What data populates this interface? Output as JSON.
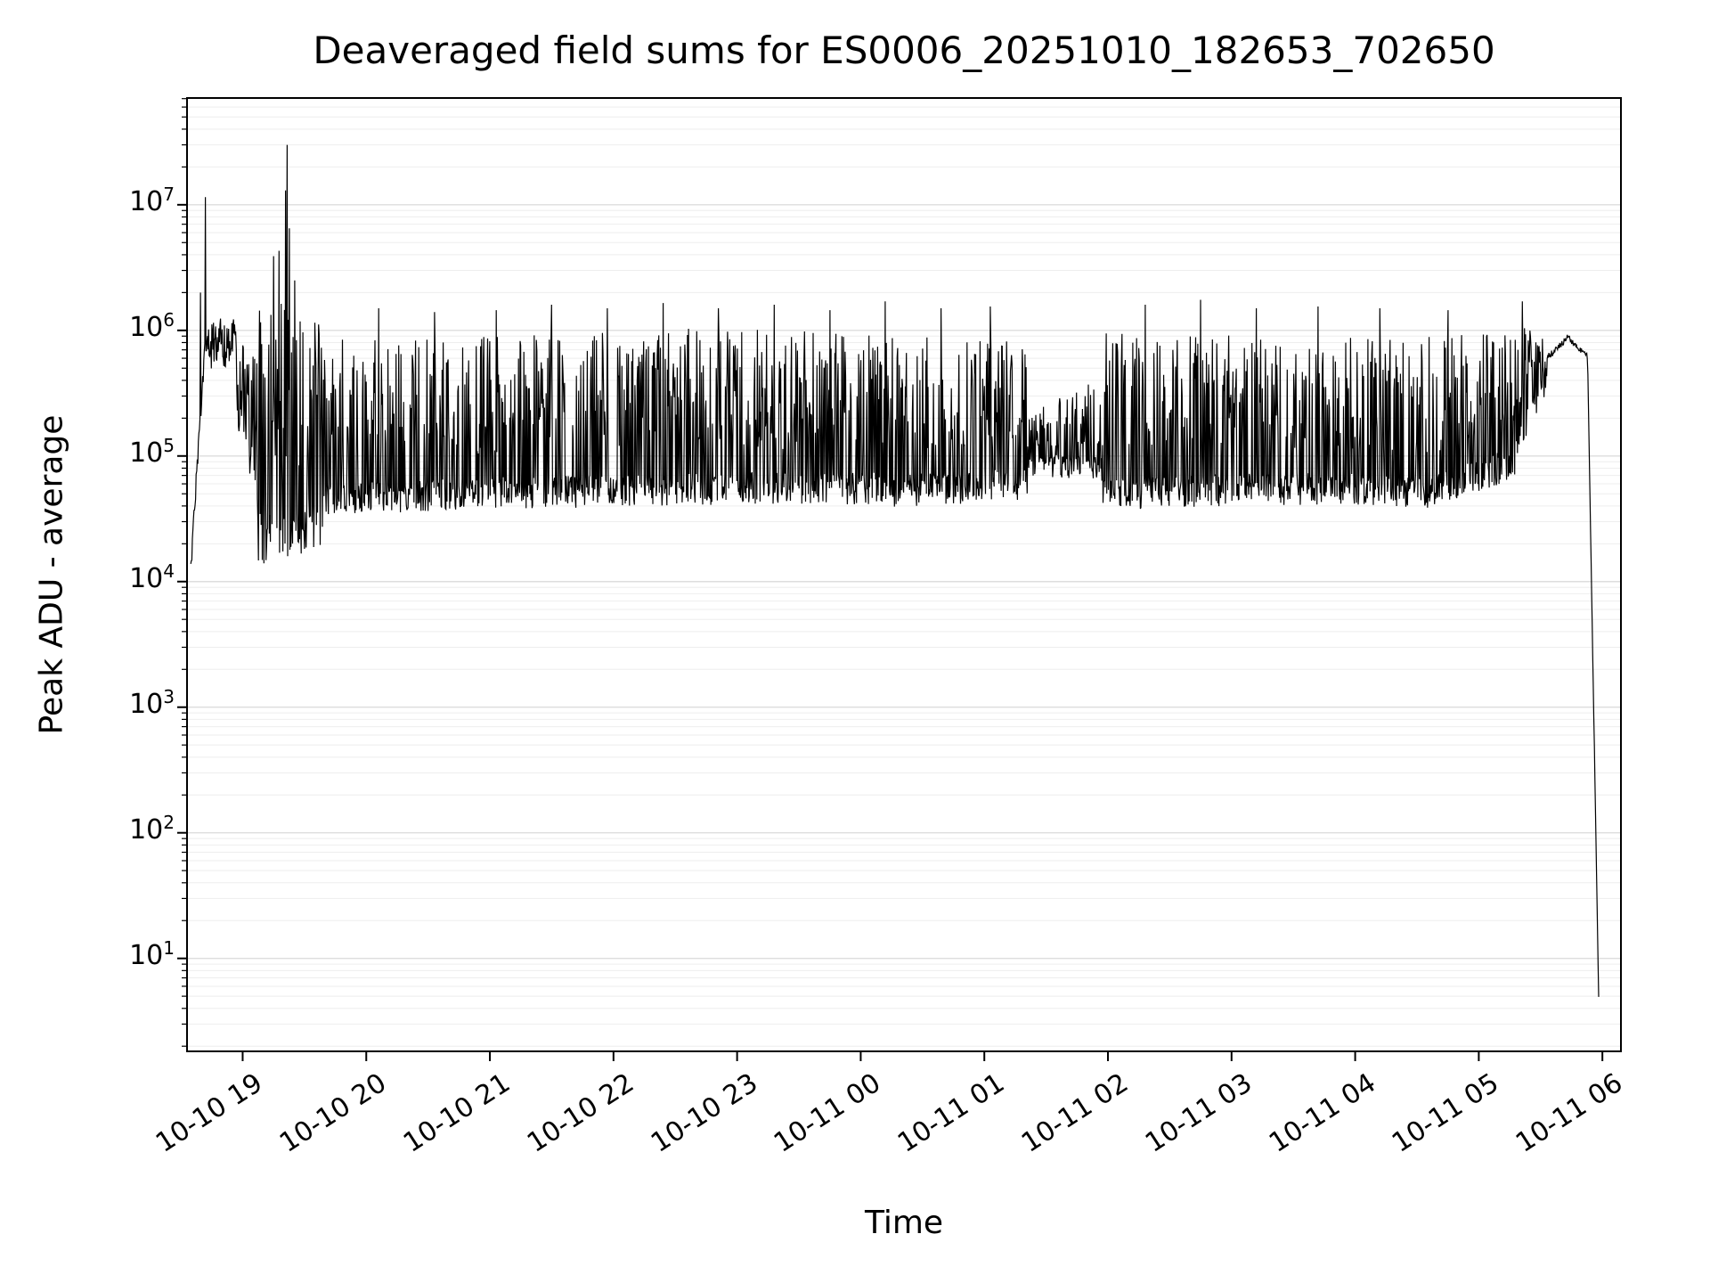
{
  "chart_data": {
    "type": "line",
    "title": "Deaveraged field sums for ES0006_20251010_182653_702650",
    "xlabel": "Time",
    "ylabel": "Peak ADU - average",
    "y_scale": "log",
    "grid": "both",
    "legend": "none",
    "line_color": "#000000",
    "grid_major_color": "#dddddd",
    "grid_minor_color": "#eeeeee",
    "xlim_hours": [
      0.55,
      12.15
    ],
    "ylog_range": [
      0.26,
      7.85
    ],
    "y_tick_base": "10",
    "y_tick_exponents": [
      1,
      2,
      3,
      4,
      5,
      6,
      7
    ],
    "x_ticks": [
      {
        "hour": 1,
        "label": "10-10 19"
      },
      {
        "hour": 2,
        "label": "10-10 20"
      },
      {
        "hour": 3,
        "label": "10-10 21"
      },
      {
        "hour": 4,
        "label": "10-10 22"
      },
      {
        "hour": 5,
        "label": "10-10 23"
      },
      {
        "hour": 6,
        "label": "10-11 00"
      },
      {
        "hour": 7,
        "label": "10-11 01"
      },
      {
        "hour": 8,
        "label": "10-11 02"
      },
      {
        "hour": 9,
        "label": "10-11 03"
      },
      {
        "hour": 10,
        "label": "10-11 04"
      },
      {
        "hour": 11,
        "label": "10-11 05"
      },
      {
        "hour": 12,
        "label": "10-11 06"
      }
    ],
    "series": {
      "name": "Peak ADU - average",
      "t_start_hours": 0.58,
      "t_end_hours": 11.97,
      "samples": 2600,
      "envelope_segments": [
        {
          "t0": 0.58,
          "t1": 0.7,
          "style": "smooth",
          "v0": 13000,
          "v1": 900000,
          "jitter": 0.2
        },
        {
          "t0": 0.7,
          "t1": 0.95,
          "style": "noisy",
          "low0": 600000,
          "low1": 580000,
          "high0": 1300000,
          "high1": 1250000,
          "spike_p": 0.6,
          "jitter": 0.2
        },
        {
          "t0": 0.95,
          "t1": 1.12,
          "style": "noisy",
          "low0": 250000,
          "low1": 60000,
          "high0": 1050000,
          "high1": 800000,
          "spike_p": 0.45,
          "jitter": 0.35
        },
        {
          "t0": 1.12,
          "t1": 1.65,
          "style": "noisy",
          "low0": 22000,
          "low1": 30000,
          "high0": 2400000,
          "high1": 1100000,
          "spike_p": 0.45,
          "jitter": 0.5
        },
        {
          "t0": 1.65,
          "t1": 3.2,
          "style": "noisy",
          "low0": 45000,
          "low1": 52000,
          "high0": 850000,
          "high1": 900000,
          "spike_p": 0.42,
          "jitter": 0.3
        },
        {
          "t0": 3.2,
          "t1": 4.6,
          "style": "noisy",
          "low0": 50000,
          "low1": 55000,
          "high0": 950000,
          "high1": 1000000,
          "spike_p": 0.43,
          "jitter": 0.3
        },
        {
          "t0": 4.6,
          "t1": 6.2,
          "style": "noisy",
          "low0": 55000,
          "low1": 55000,
          "high0": 1050000,
          "high1": 950000,
          "spike_p": 0.43,
          "jitter": 0.3
        },
        {
          "t0": 6.2,
          "t1": 7.35,
          "style": "noisy",
          "low0": 52000,
          "low1": 60000,
          "high0": 900000,
          "high1": 850000,
          "spike_p": 0.41,
          "jitter": 0.3
        },
        {
          "t0": 7.35,
          "t1": 7.95,
          "style": "noisy",
          "low0": 85000,
          "low1": 80000,
          "high0": 240000,
          "high1": 420000,
          "spike_p": 0.4,
          "jitter": 0.22
        },
        {
          "t0": 7.95,
          "t1": 9.4,
          "style": "noisy",
          "low0": 50000,
          "low1": 55000,
          "high0": 950000,
          "high1": 900000,
          "spike_p": 0.42,
          "jitter": 0.3
        },
        {
          "t0": 9.4,
          "t1": 10.6,
          "style": "noisy",
          "low0": 55000,
          "low1": 52000,
          "high0": 850000,
          "high1": 900000,
          "spike_p": 0.41,
          "jitter": 0.3
        },
        {
          "t0": 10.6,
          "t1": 11.3,
          "style": "noisy",
          "low0": 50000,
          "low1": 90000,
          "high0": 900000,
          "high1": 1000000,
          "spike_p": 0.42,
          "jitter": 0.3
        },
        {
          "t0": 11.3,
          "t1": 11.55,
          "style": "noisy",
          "low0": 120000,
          "low1": 400000,
          "high0": 1300000,
          "high1": 900000,
          "spike_p": 0.5,
          "jitter": 0.25
        },
        {
          "t0": 11.55,
          "t1": 11.72,
          "style": "smooth",
          "v0": 600000,
          "v1": 880000,
          "jitter": 0.06
        },
        {
          "t0": 11.72,
          "t1": 11.88,
          "style": "smooth",
          "v0": 880000,
          "v1": 620000,
          "jitter": 0.05
        },
        {
          "t0": 11.88,
          "t1": 11.97,
          "style": "smooth",
          "v0": 600000,
          "v1": 5,
          "jitter": 0.04
        }
      ],
      "notable_spikes": [
        [
          0.66,
          2000000
        ],
        [
          0.7,
          11500000
        ],
        [
          1.25,
          3900000
        ],
        [
          1.295,
          4300000
        ],
        [
          1.345,
          13000000
        ],
        [
          1.36,
          30000000
        ],
        [
          1.378,
          6500000
        ],
        [
          1.42,
          2500000
        ],
        [
          2.1,
          1500000
        ],
        [
          2.55,
          1400000
        ],
        [
          3.05,
          1450000
        ],
        [
          3.5,
          1600000
        ],
        [
          3.95,
          1500000
        ],
        [
          4.4,
          1650000
        ],
        [
          4.85,
          1500000
        ],
        [
          5.3,
          1600000
        ],
        [
          5.75,
          1450000
        ],
        [
          6.2,
          1700000
        ],
        [
          6.65,
          1500000
        ],
        [
          7.05,
          1550000
        ],
        [
          8.3,
          1600000
        ],
        [
          8.75,
          1750000
        ],
        [
          9.2,
          1500000
        ],
        [
          9.7,
          1550000
        ],
        [
          10.2,
          1500000
        ],
        [
          10.75,
          1450000
        ],
        [
          11.35,
          1700000
        ]
      ]
    }
  }
}
